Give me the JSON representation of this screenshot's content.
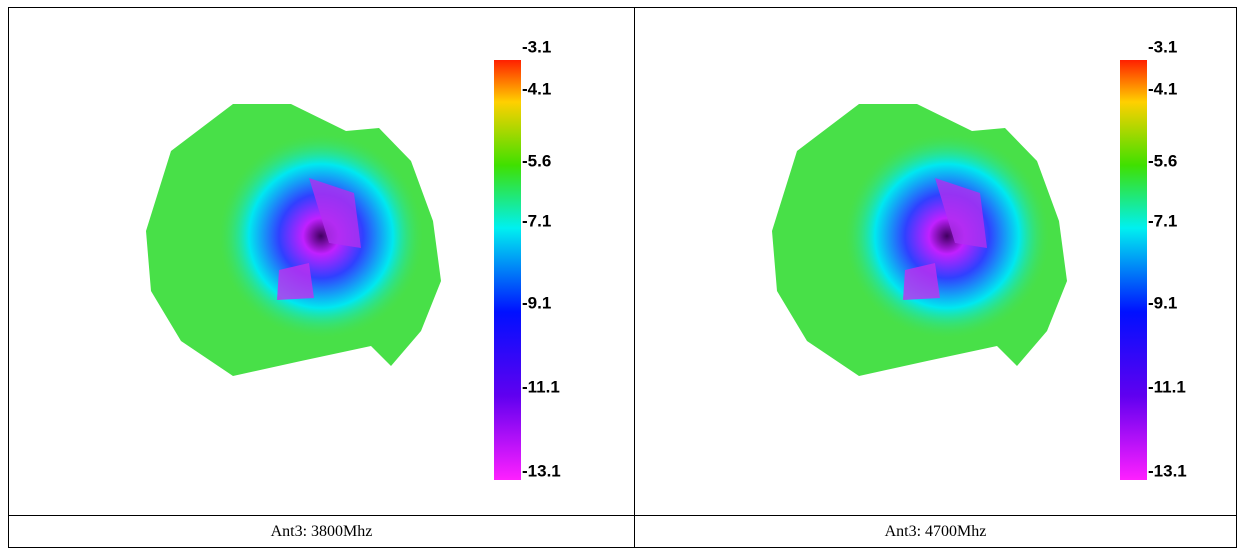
{
  "panels": [
    {
      "colorbar": {
        "labels": [
          "-3.1",
          "-4.1",
          "-5.6",
          "-7.1",
          "-9.1",
          "-11.1",
          "-13.1"
        ]
      },
      "caption": "Ant3: 3800Mhz"
    },
    {
      "colorbar": {
        "labels": [
          "-3.1",
          "-4.1",
          "-5.6",
          "-7.1",
          "-9.1",
          "-11.1",
          "-13.1"
        ]
      },
      "caption": "Ant3: 4700Mhz"
    }
  ]
}
